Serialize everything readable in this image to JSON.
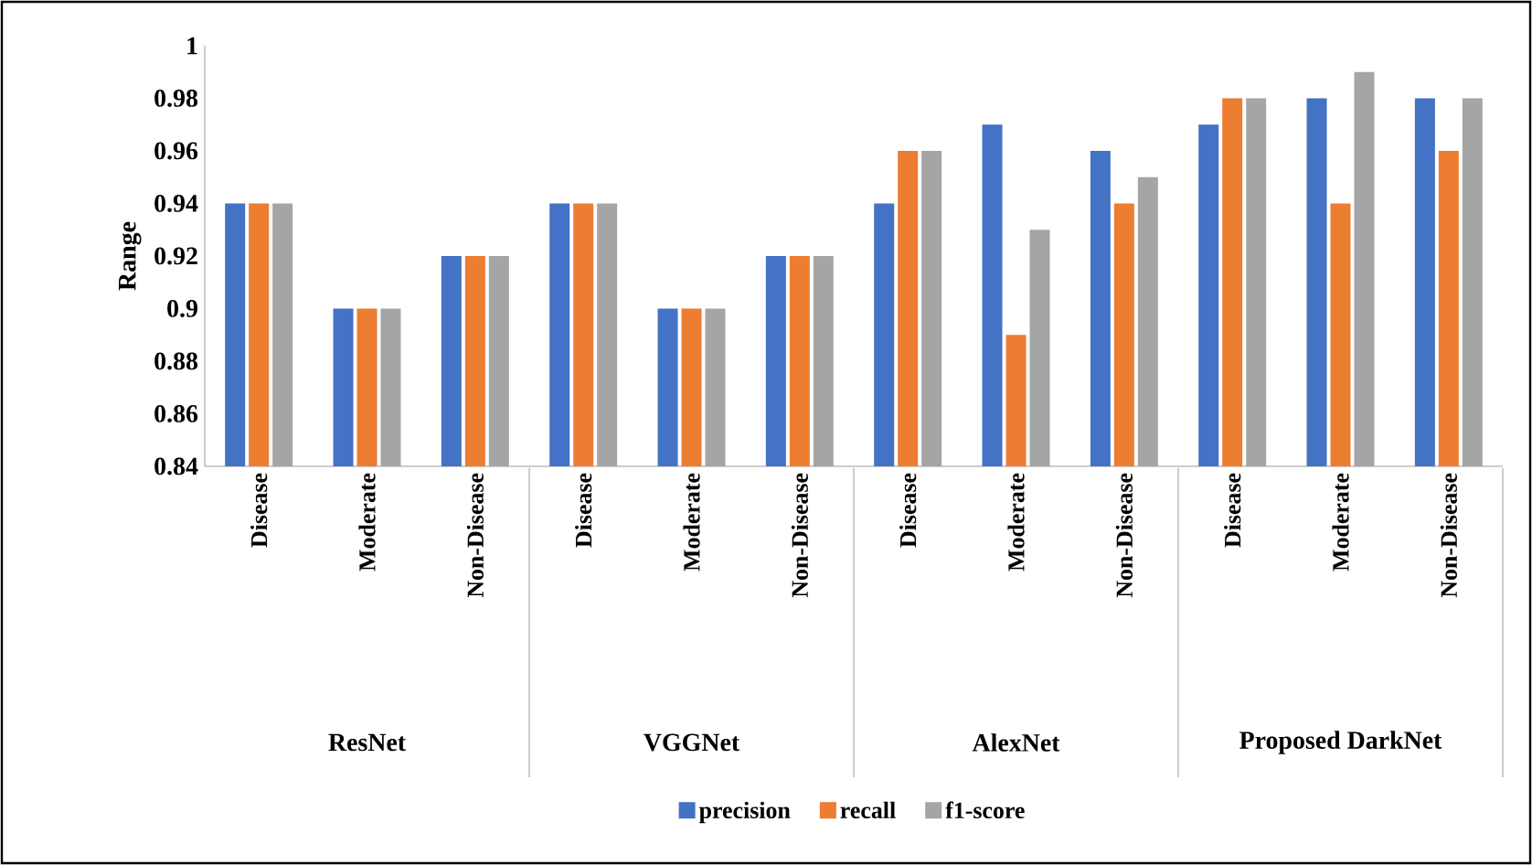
{
  "chart_data": {
    "type": "bar",
    "ylabel": "Range",
    "categories": [
      "Disease",
      "Moderate",
      "Non-Disease",
      "Disease",
      "Moderate",
      "Non-Disease",
      "Disease",
      "Moderate",
      "Non-Disease",
      "Disease",
      "Moderate",
      "Non-Disease"
    ],
    "annotations": [
      "ResNet",
      "VGGNet",
      "AlexNet",
      "Proposed DarkNet"
    ],
    "series": [
      {
        "name": "precision",
        "color": "#4472c4",
        "values": [
          0.94,
          0.9,
          0.92,
          0.94,
          0.9,
          0.92,
          0.94,
          0.97,
          0.96,
          0.97,
          0.98,
          0.98
        ]
      },
      {
        "name": "recall",
        "color": "#ed7d31",
        "values": [
          0.94,
          0.9,
          0.92,
          0.94,
          0.9,
          0.92,
          0.96,
          0.89,
          0.94,
          0.98,
          0.94,
          0.96
        ]
      },
      {
        "name": "f1-score",
        "color": "#a5a5a5",
        "values": [
          0.94,
          0.9,
          0.92,
          0.94,
          0.9,
          0.92,
          0.96,
          0.93,
          0.95,
          0.98,
          0.99,
          0.98
        ]
      }
    ],
    "ylim": [
      0.84,
      1
    ],
    "yticks": [
      0.84,
      0.86,
      0.88,
      0.9,
      0.92,
      0.94,
      0.96,
      0.98,
      1
    ],
    "grid": false,
    "legend": "bottom"
  }
}
